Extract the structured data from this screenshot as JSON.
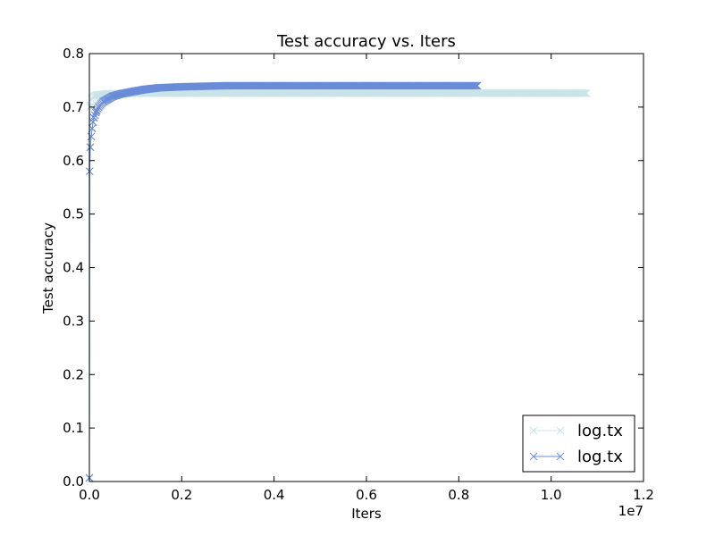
{
  "chart_data": {
    "type": "line",
    "title": "Test accuracy  vs. Iters",
    "xlabel": "Iters",
    "ylabel": "Test accuracy",
    "x_offset_label": "1e7",
    "xlim": [
      0,
      1.2
    ],
    "ylim": [
      0,
      0.8
    ],
    "xticks": [
      0.0,
      0.2,
      0.4,
      0.6,
      0.8,
      1.0,
      1.2
    ],
    "xtick_labels": [
      "0.0",
      "0.2",
      "0.4",
      "0.6",
      "0.8",
      "1.0",
      "1.2"
    ],
    "yticks": [
      0.0,
      0.1,
      0.2,
      0.3,
      0.4,
      0.5,
      0.6,
      0.7,
      0.8
    ],
    "ytick_labels": [
      "0.0",
      "0.1",
      "0.2",
      "0.3",
      "0.4",
      "0.5",
      "0.6",
      "0.7",
      "0.8"
    ],
    "grid": false,
    "legend_position": "lower-right",
    "marker": "x",
    "series": [
      {
        "name": "log.tx",
        "color": "#c9e4e8",
        "x": [
          0.0,
          0.002,
          0.005,
          0.01,
          0.015,
          0.02,
          0.03,
          0.04,
          0.05,
          0.07,
          0.1,
          0.15,
          0.2,
          0.3,
          0.4,
          0.5,
          0.6,
          0.7,
          0.8,
          0.9,
          1.0,
          1.076
        ],
        "y": [
          0.005,
          0.7,
          0.715,
          0.72,
          0.722,
          0.723,
          0.724,
          0.725,
          0.725,
          0.725,
          0.726,
          0.726,
          0.726,
          0.726,
          0.726,
          0.726,
          0.726,
          0.726,
          0.726,
          0.726,
          0.726,
          0.726
        ]
      },
      {
        "name": "log.tx",
        "color": "#6a8cd8",
        "x": [
          0.0,
          0.0005,
          0.002,
          0.004,
          0.006,
          0.008,
          0.01,
          0.015,
          0.02,
          0.03,
          0.04,
          0.05,
          0.07,
          0.1,
          0.12,
          0.15,
          0.2,
          0.25,
          0.3,
          0.4,
          0.5,
          0.6,
          0.7,
          0.8,
          0.84
        ],
        "y": [
          0.007,
          0.58,
          0.625,
          0.645,
          0.66,
          0.672,
          0.68,
          0.692,
          0.7,
          0.71,
          0.715,
          0.72,
          0.725,
          0.73,
          0.733,
          0.736,
          0.738,
          0.739,
          0.74,
          0.74,
          0.74,
          0.74,
          0.74,
          0.74,
          0.74
        ]
      }
    ]
  }
}
